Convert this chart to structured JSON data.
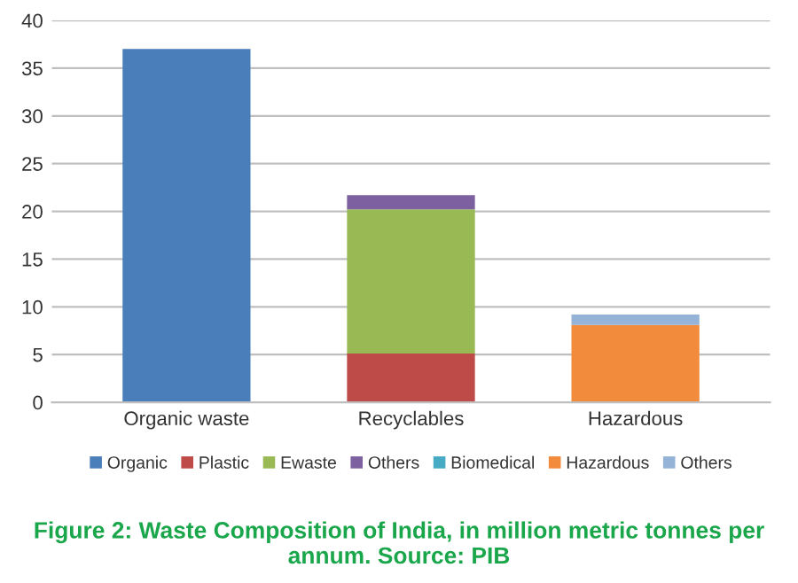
{
  "chart_data": {
    "type": "bar",
    "stacked": true,
    "title": "Figure 2: Waste Composition of India, in million metric tonnes per annum. Source: PIB",
    "categories": [
      "Organic waste",
      "Recyclables",
      "Hazardous"
    ],
    "series": [
      {
        "name": "Organic",
        "color": "#4a7ebb",
        "values": [
          37,
          0,
          0
        ]
      },
      {
        "name": "Plastic",
        "color": "#be4b48",
        "values": [
          0,
          5.1,
          0
        ]
      },
      {
        "name": "Ewaste",
        "color": "#98b954",
        "values": [
          0,
          15.1,
          0
        ]
      },
      {
        "name": "Others",
        "color": "#7d60a0",
        "values": [
          0,
          1.5,
          0
        ]
      },
      {
        "name": "Biomedical",
        "color": "#46aac5",
        "values": [
          0,
          0,
          null
        ]
      },
      {
        "name": "Hazardous",
        "color": "#f28b3c",
        "values": [
          0,
          0,
          8.1
        ]
      },
      {
        "name": "Others",
        "color": "#95b3d7",
        "values": [
          0,
          0,
          1.1
        ]
      }
    ],
    "ylim": [
      0,
      40
    ],
    "yticks": [
      0,
      5,
      10,
      15,
      20,
      25,
      30,
      35,
      40
    ],
    "grid": "y",
    "legend": "bottom"
  }
}
